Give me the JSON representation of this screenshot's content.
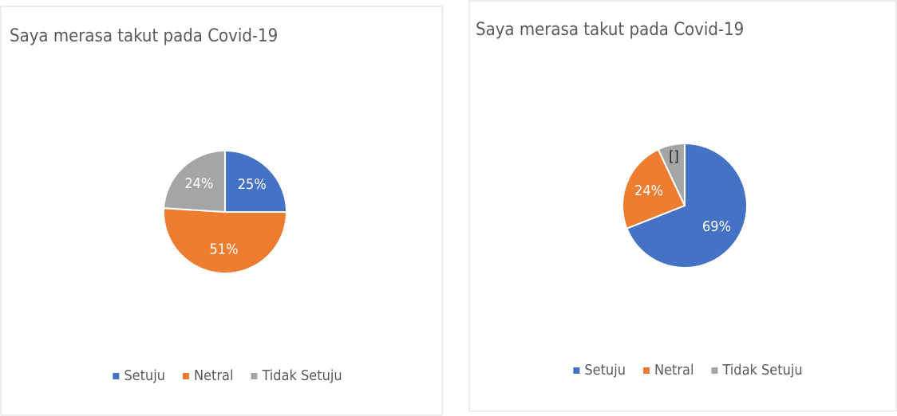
{
  "chart_data": [
    {
      "type": "pie",
      "title": "Saya merasa takut pada Covid-19",
      "categories": [
        "Setuju",
        "Netral",
        "Tidak Setuju"
      ],
      "values": [
        25,
        51,
        24
      ],
      "value_labels": [
        "25%",
        "51%",
        "24%"
      ],
      "colors": [
        "#4472c4",
        "#ed7d31",
        "#a5a5a5"
      ],
      "legend": "bottom"
    },
    {
      "type": "pie",
      "title": "Saya merasa takut pada Covid-19",
      "categories": [
        "Setuju",
        "Netral",
        "Tidak Setuju"
      ],
      "values": [
        69,
        24,
        7
      ],
      "value_labels": [
        "69%",
        "24%",
        "[]"
      ],
      "colors": [
        "#4472c4",
        "#ed7d31",
        "#a5a5a5"
      ],
      "legend": "bottom"
    }
  ]
}
